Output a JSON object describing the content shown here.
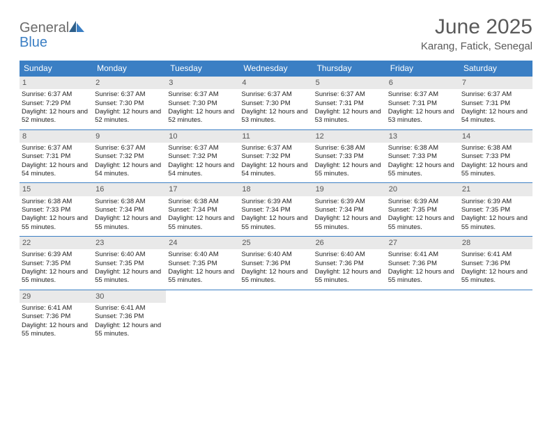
{
  "brand": {
    "part1": "General",
    "part2": "Blue"
  },
  "title": "June 2025",
  "location": "Karang, Fatick, Senegal",
  "colors": {
    "header_bg": "#3b7fc4",
    "header_text": "#ffffff",
    "daynum_bg": "#e9e9e9",
    "daynum_text": "#555555",
    "cell_text": "#222222",
    "title_text": "#5a5a5a",
    "logo_gray": "#6b6b6b",
    "logo_blue": "#3b7fc4",
    "row_divider": "#3b7fc4"
  },
  "weekdays": [
    "Sunday",
    "Monday",
    "Tuesday",
    "Wednesday",
    "Thursday",
    "Friday",
    "Saturday"
  ],
  "days": [
    {
      "n": 1,
      "sr": "6:37 AM",
      "ss": "7:29 PM",
      "dl": "12 hours and 52 minutes."
    },
    {
      "n": 2,
      "sr": "6:37 AM",
      "ss": "7:30 PM",
      "dl": "12 hours and 52 minutes."
    },
    {
      "n": 3,
      "sr": "6:37 AM",
      "ss": "7:30 PM",
      "dl": "12 hours and 52 minutes."
    },
    {
      "n": 4,
      "sr": "6:37 AM",
      "ss": "7:30 PM",
      "dl": "12 hours and 53 minutes."
    },
    {
      "n": 5,
      "sr": "6:37 AM",
      "ss": "7:31 PM",
      "dl": "12 hours and 53 minutes."
    },
    {
      "n": 6,
      "sr": "6:37 AM",
      "ss": "7:31 PM",
      "dl": "12 hours and 53 minutes."
    },
    {
      "n": 7,
      "sr": "6:37 AM",
      "ss": "7:31 PM",
      "dl": "12 hours and 54 minutes."
    },
    {
      "n": 8,
      "sr": "6:37 AM",
      "ss": "7:31 PM",
      "dl": "12 hours and 54 minutes."
    },
    {
      "n": 9,
      "sr": "6:37 AM",
      "ss": "7:32 PM",
      "dl": "12 hours and 54 minutes."
    },
    {
      "n": 10,
      "sr": "6:37 AM",
      "ss": "7:32 PM",
      "dl": "12 hours and 54 minutes."
    },
    {
      "n": 11,
      "sr": "6:37 AM",
      "ss": "7:32 PM",
      "dl": "12 hours and 54 minutes."
    },
    {
      "n": 12,
      "sr": "6:38 AM",
      "ss": "7:33 PM",
      "dl": "12 hours and 55 minutes."
    },
    {
      "n": 13,
      "sr": "6:38 AM",
      "ss": "7:33 PM",
      "dl": "12 hours and 55 minutes."
    },
    {
      "n": 14,
      "sr": "6:38 AM",
      "ss": "7:33 PM",
      "dl": "12 hours and 55 minutes."
    },
    {
      "n": 15,
      "sr": "6:38 AM",
      "ss": "7:33 PM",
      "dl": "12 hours and 55 minutes."
    },
    {
      "n": 16,
      "sr": "6:38 AM",
      "ss": "7:34 PM",
      "dl": "12 hours and 55 minutes."
    },
    {
      "n": 17,
      "sr": "6:38 AM",
      "ss": "7:34 PM",
      "dl": "12 hours and 55 minutes."
    },
    {
      "n": 18,
      "sr": "6:39 AM",
      "ss": "7:34 PM",
      "dl": "12 hours and 55 minutes."
    },
    {
      "n": 19,
      "sr": "6:39 AM",
      "ss": "7:34 PM",
      "dl": "12 hours and 55 minutes."
    },
    {
      "n": 20,
      "sr": "6:39 AM",
      "ss": "7:35 PM",
      "dl": "12 hours and 55 minutes."
    },
    {
      "n": 21,
      "sr": "6:39 AM",
      "ss": "7:35 PM",
      "dl": "12 hours and 55 minutes."
    },
    {
      "n": 22,
      "sr": "6:39 AM",
      "ss": "7:35 PM",
      "dl": "12 hours and 55 minutes."
    },
    {
      "n": 23,
      "sr": "6:40 AM",
      "ss": "7:35 PM",
      "dl": "12 hours and 55 minutes."
    },
    {
      "n": 24,
      "sr": "6:40 AM",
      "ss": "7:35 PM",
      "dl": "12 hours and 55 minutes."
    },
    {
      "n": 25,
      "sr": "6:40 AM",
      "ss": "7:36 PM",
      "dl": "12 hours and 55 minutes."
    },
    {
      "n": 26,
      "sr": "6:40 AM",
      "ss": "7:36 PM",
      "dl": "12 hours and 55 minutes."
    },
    {
      "n": 27,
      "sr": "6:41 AM",
      "ss": "7:36 PM",
      "dl": "12 hours and 55 minutes."
    },
    {
      "n": 28,
      "sr": "6:41 AM",
      "ss": "7:36 PM",
      "dl": "12 hours and 55 minutes."
    },
    {
      "n": 29,
      "sr": "6:41 AM",
      "ss": "7:36 PM",
      "dl": "12 hours and 55 minutes."
    },
    {
      "n": 30,
      "sr": "6:41 AM",
      "ss": "7:36 PM",
      "dl": "12 hours and 55 minutes."
    }
  ],
  "labels": {
    "sunrise": "Sunrise:",
    "sunset": "Sunset:",
    "daylight": "Daylight:"
  },
  "layout": {
    "start_weekday": 0,
    "cols": 7
  }
}
